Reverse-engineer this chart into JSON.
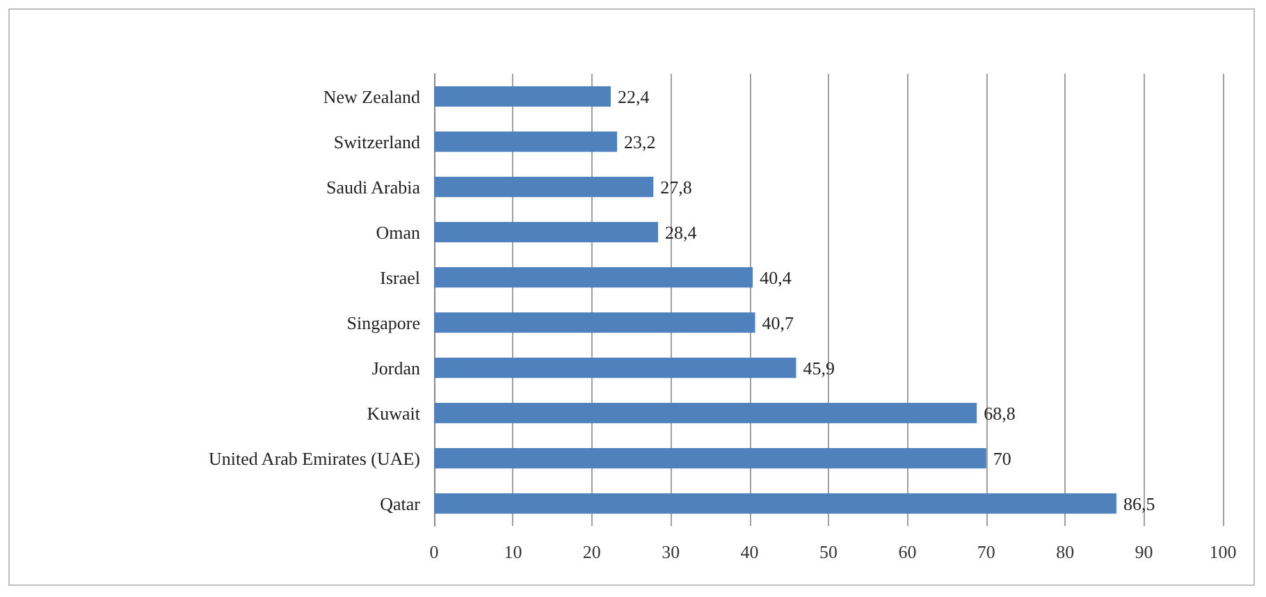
{
  "chart_data": {
    "type": "bar",
    "orientation": "horizontal",
    "categories": [
      "New Zealand",
      "Switzerland",
      "Saudi Arabia",
      "Oman",
      "Israel",
      "Singapore",
      "Jordan",
      "Kuwait",
      "United Arab Emirates (UAE)",
      "Qatar"
    ],
    "values": [
      22.4,
      23.2,
      27.8,
      28.4,
      40.4,
      40.7,
      45.9,
      68.8,
      70,
      86.5
    ],
    "value_labels": [
      "22,4",
      "23,2",
      "27,8",
      "28,4",
      "40,4",
      "40,7",
      "45,9",
      "68,8",
      "70",
      "86,5"
    ],
    "color": "#4f81bd",
    "xlim": [
      0,
      100
    ],
    "xticks": [
      0,
      10,
      20,
      30,
      40,
      50,
      60,
      70,
      80,
      90,
      100
    ],
    "grid": "x"
  }
}
